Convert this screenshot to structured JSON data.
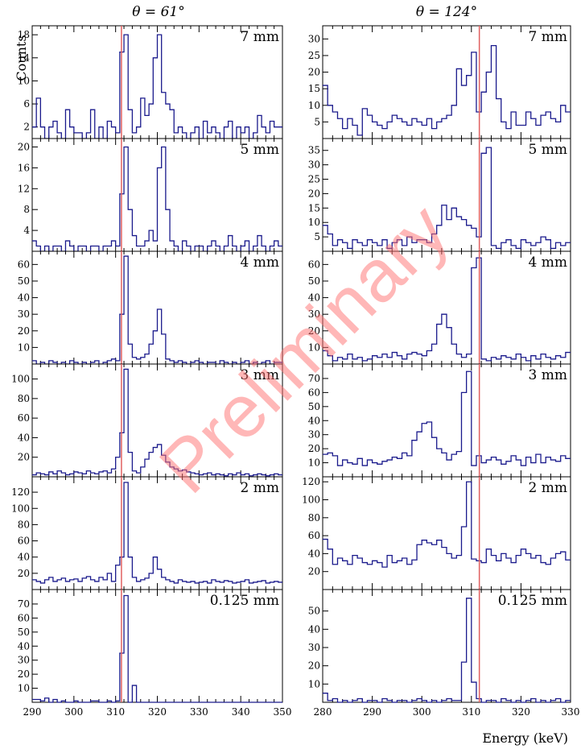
{
  "chart_data": [
    {
      "type": "histogram",
      "column_title": "θ = 61°",
      "ylabel": "Counts",
      "xlabel": "",
      "xlim": [
        290,
        350
      ],
      "xticks": [
        290,
        300,
        310,
        320,
        330,
        340,
        350
      ],
      "reference_line": {
        "x": 311.4,
        "color": "#e06060"
      },
      "bin_width": 1,
      "panels": [
        {
          "label": "7 mm",
          "ylim": [
            0,
            19
          ],
          "yticks": [
            2,
            6,
            10,
            14,
            18
          ],
          "values": [
            2,
            7,
            2,
            0,
            2,
            3,
            1,
            0,
            5,
            2,
            1,
            1,
            0,
            1,
            5,
            0,
            2,
            0,
            3,
            2,
            1,
            15,
            18,
            5,
            1,
            2,
            7,
            4,
            6,
            14,
            18,
            8,
            6,
            5,
            1,
            2,
            1,
            0,
            1,
            2,
            0,
            3,
            1,
            2,
            1,
            0,
            2,
            3,
            0,
            2,
            1,
            2,
            0,
            1,
            4,
            2,
            1,
            3,
            2,
            2
          ]
        },
        {
          "label": "5 mm",
          "ylim": [
            0,
            21
          ],
          "yticks": [
            4,
            8,
            12,
            16,
            20
          ],
          "values": [
            2,
            1,
            0,
            1,
            0,
            1,
            1,
            0,
            2,
            1,
            0,
            1,
            1,
            0,
            1,
            1,
            0,
            1,
            1,
            2,
            1,
            11,
            20,
            8,
            3,
            1,
            1,
            2,
            4,
            2,
            16,
            20,
            8,
            2,
            1,
            0,
            2,
            1,
            0,
            1,
            1,
            0,
            1,
            2,
            1,
            0,
            1,
            3,
            1,
            0,
            1,
            2,
            0,
            1,
            3,
            1,
            0,
            1,
            2,
            1
          ]
        },
        {
          "label": "4 mm",
          "ylim": [
            0,
            66
          ],
          "yticks": [
            10,
            20,
            30,
            40,
            50,
            60
          ],
          "values": [
            2,
            0,
            1,
            0,
            2,
            1,
            0,
            1,
            0,
            2,
            1,
            0,
            1,
            0,
            1,
            2,
            0,
            1,
            2,
            3,
            2,
            30,
            65,
            12,
            4,
            3,
            4,
            6,
            12,
            20,
            33,
            18,
            3,
            2,
            1,
            2,
            1,
            0,
            1,
            2,
            1,
            0,
            1,
            1,
            0,
            2,
            1,
            0,
            1,
            0,
            1,
            2,
            0,
            1,
            0,
            1,
            2,
            0,
            1,
            1
          ]
        },
        {
          "label": "3 mm",
          "ylim": [
            0,
            112
          ],
          "yticks": [
            20,
            40,
            60,
            80,
            100
          ],
          "values": [
            2,
            4,
            3,
            2,
            5,
            3,
            6,
            4,
            2,
            3,
            5,
            4,
            3,
            6,
            4,
            3,
            5,
            6,
            4,
            8,
            20,
            45,
            110,
            25,
            6,
            4,
            10,
            18,
            25,
            30,
            33,
            22,
            15,
            10,
            8,
            6,
            7,
            5,
            4,
            3,
            2,
            3,
            4,
            2,
            3,
            2,
            1,
            3,
            2,
            4,
            2,
            3,
            1,
            2,
            3,
            2,
            1,
            2,
            3,
            2
          ]
        },
        {
          "label": "2 mm",
          "ylim": [
            0,
            135
          ],
          "yticks": [
            20,
            40,
            60,
            80,
            100,
            120
          ],
          "values": [
            12,
            10,
            8,
            12,
            15,
            10,
            12,
            14,
            10,
            12,
            13,
            10,
            14,
            16,
            12,
            10,
            15,
            12,
            20,
            10,
            30,
            40,
            132,
            40,
            15,
            10,
            12,
            14,
            20,
            40,
            25,
            15,
            12,
            10,
            8,
            12,
            10,
            9,
            10,
            8,
            9,
            10,
            8,
            12,
            10,
            9,
            11,
            10,
            8,
            9,
            10,
            12,
            8,
            9,
            10,
            11,
            8,
            9,
            10,
            9
          ]
        },
        {
          "label": "0.125 mm",
          "ylim": [
            0,
            78
          ],
          "yticks": [
            10,
            20,
            30,
            40,
            50,
            60,
            70
          ],
          "values": [
            2,
            2,
            1,
            3,
            0,
            2,
            0,
            1,
            0,
            0,
            1,
            0,
            0,
            0,
            1,
            1,
            0,
            0,
            1,
            0,
            1,
            35,
            76,
            0,
            12,
            0,
            0,
            0,
            0,
            0,
            0,
            0,
            0,
            0,
            0,
            0,
            0,
            0,
            0,
            0,
            0,
            0,
            0,
            0,
            0,
            0,
            0,
            0,
            0,
            0,
            0,
            0,
            0,
            0,
            0,
            0,
            0,
            0,
            0,
            0
          ]
        }
      ]
    },
    {
      "type": "histogram",
      "column_title": "θ = 124°",
      "ylabel": "",
      "xlabel": "Energy  (keV)",
      "xlim": [
        280,
        330
      ],
      "xticks": [
        280,
        290,
        300,
        310,
        320,
        330
      ],
      "reference_line": {
        "x": 311.6,
        "color": "#e06060"
      },
      "bin_width": 1,
      "panels": [
        {
          "label": "7 mm",
          "ylim": [
            0,
            33
          ],
          "yticks": [
            5,
            10,
            15,
            20,
            25,
            30
          ],
          "values": [
            16,
            10,
            8,
            6,
            3,
            6,
            4,
            1,
            9,
            7,
            5,
            4,
            3,
            5,
            7,
            6,
            5,
            4,
            6,
            5,
            4,
            6,
            3,
            5,
            6,
            7,
            10,
            21,
            16,
            19,
            26,
            8,
            14,
            20,
            28,
            12,
            5,
            3,
            8,
            4,
            4,
            8,
            6,
            4,
            7,
            8,
            6,
            5,
            10,
            8
          ]
        },
        {
          "label": "5 mm",
          "ylim": [
            0,
            38
          ],
          "yticks": [
            5,
            10,
            15,
            20,
            25,
            30,
            35
          ],
          "values": [
            9,
            6,
            2,
            4,
            3,
            1,
            4,
            3,
            2,
            4,
            3,
            2,
            4,
            1,
            3,
            4,
            2,
            5,
            3,
            4,
            4,
            3,
            6,
            9,
            16,
            11,
            15,
            12,
            11,
            9,
            8,
            5,
            34,
            36,
            2,
            1,
            3,
            4,
            2,
            1,
            4,
            3,
            2,
            3,
            5,
            4,
            1,
            3,
            2,
            3
          ]
        },
        {
          "label": "4 mm",
          "ylim": [
            0,
            66
          ],
          "yticks": [
            10,
            20,
            30,
            40,
            50,
            60
          ],
          "values": [
            8,
            5,
            2,
            4,
            3,
            6,
            3,
            4,
            2,
            3,
            5,
            4,
            6,
            4,
            7,
            5,
            3,
            6,
            7,
            6,
            5,
            8,
            12,
            24,
            30,
            22,
            12,
            6,
            4,
            6,
            58,
            64,
            3,
            2,
            4,
            3,
            5,
            4,
            3,
            6,
            4,
            2,
            5,
            3,
            6,
            4,
            3,
            5,
            4,
            7
          ]
        },
        {
          "label": "3 mm",
          "ylim": [
            0,
            78
          ],
          "yticks": [
            10,
            20,
            30,
            40,
            50,
            60,
            70
          ],
          "values": [
            16,
            17,
            15,
            8,
            12,
            10,
            9,
            13,
            8,
            12,
            10,
            9,
            11,
            12,
            14,
            13,
            17,
            15,
            26,
            32,
            38,
            39,
            28,
            20,
            17,
            12,
            16,
            18,
            60,
            75,
            8,
            15,
            10,
            12,
            14,
            12,
            9,
            11,
            15,
            12,
            8,
            14,
            10,
            16,
            10,
            14,
            12,
            11,
            15,
            13
          ]
        },
        {
          "label": "2 mm",
          "ylim": [
            0,
            122
          ],
          "yticks": [
            20,
            40,
            60,
            80,
            100,
            120
          ],
          "values": [
            56,
            45,
            28,
            35,
            32,
            28,
            38,
            35,
            30,
            28,
            32,
            30,
            25,
            38,
            30,
            32,
            35,
            28,
            33,
            50,
            55,
            52,
            50,
            55,
            47,
            40,
            35,
            38,
            70,
            120,
            34,
            32,
            30,
            45,
            38,
            32,
            40,
            35,
            30,
            38,
            45,
            40,
            35,
            38,
            30,
            28,
            35,
            40,
            42,
            33
          ]
        },
        {
          "label": "0.125 mm",
          "ylim": [
            0,
            60
          ],
          "yticks": [
            10,
            20,
            30,
            40,
            50
          ],
          "values": [
            5,
            1,
            2,
            0,
            1,
            0,
            1,
            2,
            0,
            1,
            1,
            0,
            2,
            1,
            0,
            1,
            1,
            0,
            1,
            2,
            1,
            0,
            1,
            0,
            1,
            2,
            1,
            1,
            22,
            57,
            11,
            2,
            0,
            1,
            1,
            0,
            2,
            1,
            0,
            1,
            0,
            1,
            2,
            0,
            1,
            0,
            1,
            2,
            0,
            1
          ]
        }
      ]
    }
  ],
  "watermark": "Preliminary"
}
